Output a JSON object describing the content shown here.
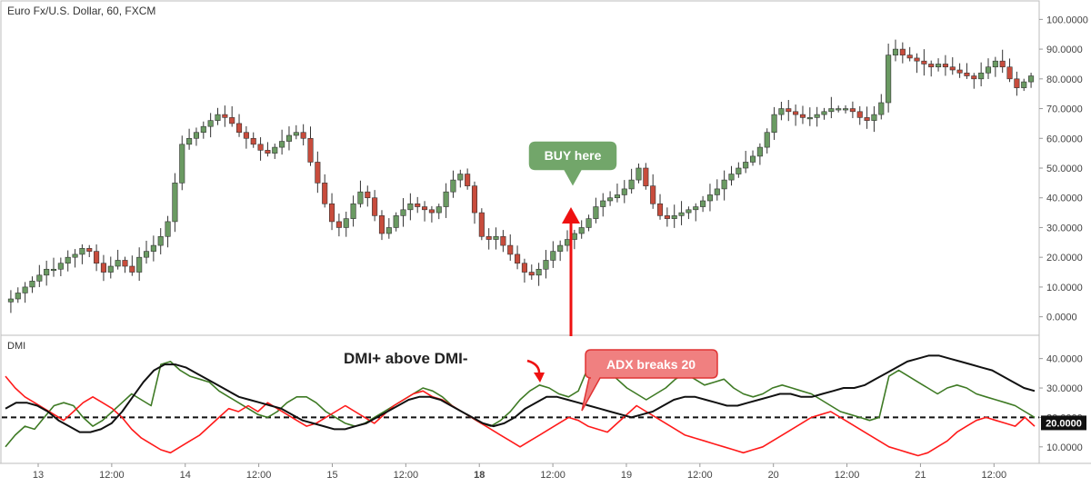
{
  "header": {
    "symbol_title": "Euro Fx/U.S. Dollar, 60, FXCM"
  },
  "colors": {
    "up_candle": "#6a9a62",
    "down_candle": "#c84c3c",
    "dmi_plus": "#3e7a24",
    "dmi_minus": "#ff1a1a",
    "adx": "#111111",
    "buy_callout_fill": "#72a66a",
    "adx_callout_fill": "#f08080",
    "arrow": "#ee1111"
  },
  "annotations": {
    "buy_label": "BUY here",
    "dmi_cross_label": "DMI+ above DMI-",
    "adx_break_label": "ADX breaks 20"
  },
  "chart_data": [
    {
      "type": "candlestick",
      "title": "Euro Fx/U.S. Dollar, 60, FXCM",
      "ylim": [
        -5,
        105
      ],
      "y_ticks": [
        "100.0000",
        "90.0000",
        "80.0000",
        "70.0000",
        "60.0000",
        "50.0000",
        "40.0000",
        "30.0000",
        "20.0000",
        "10.0000",
        "0.0000"
      ],
      "close_path": [
        6,
        8,
        10,
        12,
        14,
        16,
        16,
        18,
        20,
        21,
        23,
        22,
        18,
        15,
        17,
        19,
        17,
        15,
        20,
        22,
        24,
        27,
        32,
        45,
        58,
        60,
        62,
        64,
        66,
        68,
        67,
        65,
        62,
        60,
        58,
        56,
        55,
        57,
        59,
        61,
        62,
        60,
        52,
        45,
        38,
        32,
        30,
        33,
        38,
        42,
        40,
        34,
        28,
        30,
        34,
        36,
        38,
        37,
        36,
        35,
        37,
        42,
        46,
        48,
        44,
        35,
        27,
        26,
        27,
        24,
        21,
        18,
        15,
        14,
        16,
        19,
        22,
        24,
        26,
        28,
        30,
        33,
        37,
        39,
        40,
        41,
        43,
        46,
        50,
        44,
        38,
        34,
        33,
        34,
        35,
        36,
        37,
        39,
        41,
        43,
        46,
        48,
        50,
        52,
        54,
        57,
        62,
        68,
        70,
        69,
        68,
        67,
        67,
        68,
        69,
        70,
        70,
        70,
        69,
        67,
        66,
        68,
        72,
        88,
        90,
        88,
        87,
        86,
        85,
        84,
        85,
        84,
        83,
        82,
        81,
        80,
        82,
        84,
        86,
        84,
        80,
        77,
        79,
        81
      ],
      "x_tick_labels": [
        "13",
        "12:00",
        "14",
        "12:00",
        "15",
        "12:00",
        "18",
        "12:00",
        "19",
        "12:00",
        "20",
        "12:00",
        "21",
        "12:00"
      ]
    },
    {
      "type": "line",
      "title": "DMI",
      "ylim": [
        5,
        47
      ],
      "y_ticks": [
        "40.0000",
        "30.0000",
        "20.0000",
        "10.0000"
      ],
      "threshold": 20,
      "threshold_label": "20.0000",
      "series": [
        {
          "name": "DMI+",
          "values": [
            10,
            14,
            17,
            16,
            20,
            24,
            25,
            24,
            20,
            17,
            19,
            22,
            25,
            28,
            26,
            24,
            38,
            39,
            36,
            34,
            33,
            32,
            29,
            27,
            25,
            23,
            21,
            20,
            22,
            25,
            27,
            27,
            25,
            22,
            20,
            18,
            17,
            18,
            20,
            22,
            24,
            26,
            28,
            30,
            29,
            27,
            24,
            22,
            20,
            18,
            17,
            19,
            22,
            26,
            29,
            31,
            30,
            28,
            27,
            29,
            37,
            39,
            36,
            33,
            30,
            28,
            26,
            28,
            30,
            33,
            35,
            33,
            31,
            32,
            33,
            30,
            28,
            27,
            28,
            30,
            31,
            30,
            29,
            28,
            26,
            24,
            22,
            21,
            20,
            19,
            20,
            34,
            36,
            34,
            32,
            30,
            28,
            30,
            31,
            30,
            28,
            27,
            26,
            25,
            24,
            22,
            20
          ]
        },
        {
          "name": "DMI-",
          "values": [
            34,
            30,
            27,
            25,
            23,
            21,
            19,
            22,
            25,
            27,
            25,
            23,
            20,
            16,
            13,
            11,
            9,
            8,
            10,
            12,
            14,
            17,
            20,
            23,
            22,
            24,
            22,
            25,
            23,
            21,
            19,
            17,
            18,
            20,
            22,
            24,
            22,
            20,
            18,
            21,
            24,
            26,
            28,
            29,
            27,
            26,
            24,
            22,
            20,
            18,
            16,
            14,
            12,
            10,
            12,
            14,
            16,
            18,
            20,
            19,
            17,
            16,
            15,
            18,
            21,
            24,
            22,
            20,
            18,
            16,
            14,
            13,
            12,
            11,
            10,
            9,
            8,
            9,
            10,
            12,
            14,
            16,
            18,
            20,
            21,
            22,
            20,
            18,
            16,
            14,
            12,
            10,
            9,
            8,
            7,
            8,
            10,
            12,
            15,
            17,
            19,
            20,
            19,
            18,
            17,
            20,
            17
          ]
        },
        {
          "name": "ADX",
          "values": [
            23,
            25,
            25,
            24,
            22,
            19,
            17,
            15,
            15,
            16,
            18,
            22,
            27,
            32,
            36,
            38,
            38,
            37,
            35,
            33,
            31,
            29,
            27,
            26,
            25,
            24,
            23,
            21,
            19,
            18,
            17,
            16,
            16,
            17,
            18,
            20,
            22,
            24,
            26,
            27,
            27,
            26,
            24,
            22,
            20,
            18,
            17,
            18,
            20,
            23,
            25,
            27,
            27,
            26,
            25,
            24,
            23,
            22,
            21,
            20,
            21,
            22,
            24,
            26,
            27,
            27,
            26,
            25,
            24,
            24,
            25,
            26,
            27,
            28,
            28,
            27,
            27,
            28,
            29,
            30,
            30,
            31,
            33,
            35,
            37,
            39,
            40,
            41,
            41,
            40,
            39,
            38,
            37,
            36,
            34,
            32,
            30,
            29
          ]
        }
      ]
    }
  ]
}
